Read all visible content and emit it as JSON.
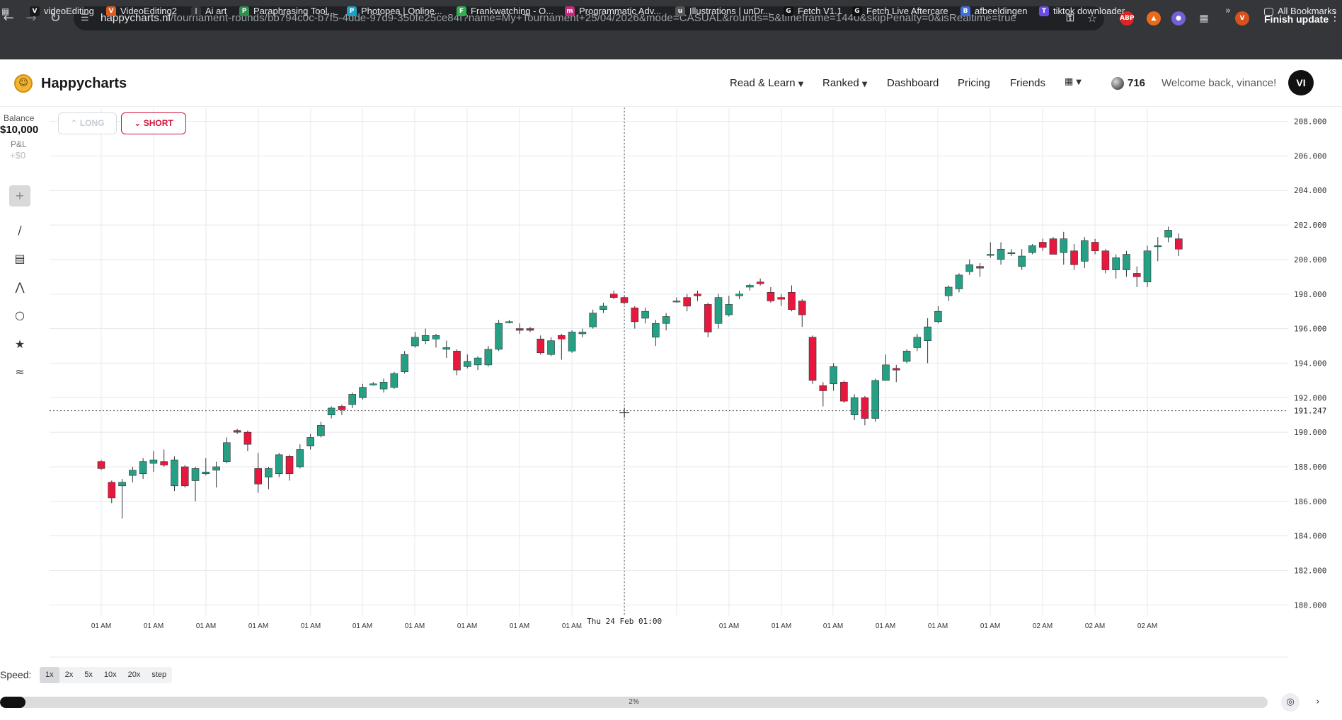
{
  "browser": {
    "url_host": "happycharts.nl",
    "url_path": "/tournament-rounds/bb794c0c-b7f5-4dde-97d9-350fe25ce84f?name=My+Tournament+25/04/2026&mode=CASUAL&rounds=5&timeframe=1440&skipPenalty=0&isRealtime=true",
    "finish_update": "Finish update",
    "bookmarks": [
      {
        "label": "videoEditing",
        "icon": "V",
        "color": "#1a1a1a"
      },
      {
        "label": "VideoEditing2",
        "icon": "V",
        "color": "#e05a1c"
      },
      {
        "label": "Ai art",
        "icon": "|",
        "color": "#35363a"
      },
      {
        "label": "Paraphrasing Tool...",
        "icon": "P",
        "color": "#2f8f4e"
      },
      {
        "label": "Photopea | Online...",
        "icon": "P",
        "color": "#1aa1c4"
      },
      {
        "label": "Frankwatching - O...",
        "icon": "F",
        "color": "#2bb24c"
      },
      {
        "label": "Programmatic Adv...",
        "icon": "m",
        "color": "#c62a7a"
      },
      {
        "label": "Illustrations | unDr...",
        "icon": "u",
        "color": "#555"
      },
      {
        "label": "Fetch V1.1",
        "icon": "G",
        "color": "#111"
      },
      {
        "label": "Fetch Live Aftercare",
        "icon": "G",
        "color": "#111"
      },
      {
        "label": "afbeeldingen",
        "icon": "B",
        "color": "#3a6fe0"
      },
      {
        "label": "tiktok downloader",
        "icon": "T",
        "color": "#6b4de6"
      }
    ],
    "all_bookmarks": "All Bookmarks"
  },
  "app": {
    "brand": "Happycharts",
    "nav": [
      {
        "label": "Read & Learn",
        "dropdown": true
      },
      {
        "label": "Ranked",
        "dropdown": true
      },
      {
        "label": "Dashboard",
        "dropdown": false
      },
      {
        "label": "Pricing",
        "dropdown": false
      },
      {
        "label": "Friends",
        "dropdown": false
      }
    ],
    "coins": "716",
    "welcome": "Welcome back, vinance!",
    "avatar_initials": "VI"
  },
  "account": {
    "balance_label": "Balance",
    "balance_value": "$10,000",
    "pnl_label": "P&L",
    "pnl_value": "+$0"
  },
  "trade": {
    "long_label": "LONG",
    "short_label": "SHORT"
  },
  "tools": [
    "crosshair-icon",
    "trend-line-icon",
    "ruler-icon",
    "path-icon",
    "circle-icon",
    "star-icon",
    "lines-icon"
  ],
  "speed": {
    "label": "Speed:",
    "options": [
      "1x",
      "2x",
      "5x",
      "10x",
      "20x",
      "step"
    ],
    "selected": 0
  },
  "progress": {
    "label": "2%",
    "fraction": 0.02
  },
  "colors": {
    "up": "#26a085",
    "down": "#e8173d",
    "short": "#d0143c"
  },
  "chart_data": {
    "type": "candlestick",
    "ylim": [
      179.4,
      208.8
    ],
    "y_ticks": [
      "208.000",
      "206.000",
      "204.000",
      "202.000",
      "200.000",
      "198.000",
      "196.000",
      "194.000",
      "192.000",
      "190.000",
      "188.000",
      "186.000",
      "184.000",
      "182.000",
      "180.000"
    ],
    "x_ticks": [
      "01 AM",
      "01 AM",
      "01 AM",
      "01 AM",
      "01 AM",
      "01 AM",
      "01 AM",
      "01 AM",
      "01 AM",
      "01 AM",
      "01 AM",
      "01 AM",
      "01 AM",
      "01 AM",
      "01 AM",
      "01 AM",
      "02 AM",
      "02 AM",
      "02 AM"
    ],
    "crosshair_time": "Thu 24 Feb 01:00",
    "crosshair_price": "191.247",
    "crosshair_price_value": 191.25,
    "crosshair_candle": 54,
    "candles": [
      {
        "o": 188.3,
        "h": 188.4,
        "l": 187.8,
        "c": 187.9
      },
      {
        "o": 187.1,
        "h": 187.2,
        "l": 185.9,
        "c": 186.2
      },
      {
        "o": 186.9,
        "h": 187.3,
        "l": 185.0,
        "c": 187.1
      },
      {
        "o": 187.5,
        "h": 188.0,
        "l": 187.1,
        "c": 187.8
      },
      {
        "o": 187.6,
        "h": 188.5,
        "l": 187.3,
        "c": 188.3
      },
      {
        "o": 188.2,
        "h": 188.9,
        "l": 187.7,
        "c": 188.4
      },
      {
        "o": 188.3,
        "h": 189.0,
        "l": 188.0,
        "c": 188.1
      },
      {
        "o": 186.9,
        "h": 188.6,
        "l": 186.6,
        "c": 188.4
      },
      {
        "o": 188.0,
        "h": 188.1,
        "l": 186.8,
        "c": 186.9
      },
      {
        "o": 187.2,
        "h": 188.0,
        "l": 186.0,
        "c": 187.9
      },
      {
        "o": 187.6,
        "h": 188.5,
        "l": 187.5,
        "c": 187.7
      },
      {
        "o": 187.8,
        "h": 188.3,
        "l": 186.8,
        "c": 188.0
      },
      {
        "o": 188.3,
        "h": 189.7,
        "l": 188.2,
        "c": 189.4
      },
      {
        "o": 190.1,
        "h": 190.2,
        "l": 189.9,
        "c": 190.0
      },
      {
        "o": 190.0,
        "h": 190.1,
        "l": 188.9,
        "c": 189.3
      },
      {
        "o": 187.9,
        "h": 188.8,
        "l": 186.5,
        "c": 187.0
      },
      {
        "o": 187.4,
        "h": 188.0,
        "l": 186.7,
        "c": 187.9
      },
      {
        "o": 187.6,
        "h": 188.8,
        "l": 187.4,
        "c": 188.7
      },
      {
        "o": 188.6,
        "h": 188.7,
        "l": 187.2,
        "c": 187.6
      },
      {
        "o": 188.0,
        "h": 189.3,
        "l": 187.9,
        "c": 189.0
      },
      {
        "o": 189.2,
        "h": 189.9,
        "l": 189.0,
        "c": 189.7
      },
      {
        "o": 189.8,
        "h": 190.6,
        "l": 189.7,
        "c": 190.4
      },
      {
        "o": 191.0,
        "h": 191.5,
        "l": 190.8,
        "c": 191.4
      },
      {
        "o": 191.5,
        "h": 191.6,
        "l": 191.0,
        "c": 191.3
      },
      {
        "o": 191.6,
        "h": 192.3,
        "l": 191.4,
        "c": 192.2
      },
      {
        "o": 192.0,
        "h": 192.8,
        "l": 191.9,
        "c": 192.6
      },
      {
        "o": 192.8,
        "h": 192.9,
        "l": 192.7,
        "c": 192.8
      },
      {
        "o": 192.5,
        "h": 193.1,
        "l": 192.3,
        "c": 192.9
      },
      {
        "o": 192.6,
        "h": 193.5,
        "l": 192.5,
        "c": 193.4
      },
      {
        "o": 193.5,
        "h": 194.7,
        "l": 193.4,
        "c": 194.5
      },
      {
        "o": 195.0,
        "h": 195.8,
        "l": 194.9,
        "c": 195.5
      },
      {
        "o": 195.3,
        "h": 196.0,
        "l": 195.1,
        "c": 195.6
      },
      {
        "o": 195.4,
        "h": 195.7,
        "l": 194.9,
        "c": 195.6
      },
      {
        "o": 194.8,
        "h": 195.3,
        "l": 194.3,
        "c": 194.9
      },
      {
        "o": 194.7,
        "h": 194.8,
        "l": 193.3,
        "c": 193.6
      },
      {
        "o": 193.8,
        "h": 194.5,
        "l": 193.7,
        "c": 194.1
      },
      {
        "o": 193.9,
        "h": 194.4,
        "l": 193.6,
        "c": 194.3
      },
      {
        "o": 193.9,
        "h": 195.0,
        "l": 193.8,
        "c": 194.8
      },
      {
        "o": 194.8,
        "h": 196.5,
        "l": 194.7,
        "c": 196.3
      },
      {
        "o": 196.4,
        "h": 196.5,
        "l": 196.3,
        "c": 196.4
      },
      {
        "o": 196.0,
        "h": 196.3,
        "l": 195.7,
        "c": 195.9
      },
      {
        "o": 196.0,
        "h": 196.1,
        "l": 195.8,
        "c": 195.9
      },
      {
        "o": 195.4,
        "h": 195.6,
        "l": 194.5,
        "c": 194.6
      },
      {
        "o": 194.5,
        "h": 195.5,
        "l": 194.4,
        "c": 195.3
      },
      {
        "o": 195.6,
        "h": 195.7,
        "l": 194.2,
        "c": 195.4
      },
      {
        "o": 194.7,
        "h": 195.9,
        "l": 194.6,
        "c": 195.8
      },
      {
        "o": 195.7,
        "h": 196.0,
        "l": 195.5,
        "c": 195.8
      },
      {
        "o": 196.1,
        "h": 197.1,
        "l": 196.0,
        "c": 196.9
      },
      {
        "o": 197.1,
        "h": 197.5,
        "l": 196.9,
        "c": 197.3
      },
      {
        "o": 198.0,
        "h": 198.2,
        "l": 197.7,
        "c": 197.8
      },
      {
        "o": 197.8,
        "h": 197.9,
        "l": 197.4,
        "c": 197.5
      },
      {
        "o": 197.2,
        "h": 197.3,
        "l": 196.0,
        "c": 196.4
      },
      {
        "o": 196.6,
        "h": 197.2,
        "l": 196.3,
        "c": 197.0
      },
      {
        "o": 195.5,
        "h": 196.5,
        "l": 195.0,
        "c": 196.3
      },
      {
        "o": 196.3,
        "h": 196.9,
        "l": 195.9,
        "c": 196.7
      },
      {
        "o": 197.6,
        "h": 197.8,
        "l": 197.5,
        "c": 197.6
      },
      {
        "o": 197.8,
        "h": 198.0,
        "l": 197.0,
        "c": 197.3
      },
      {
        "o": 198.0,
        "h": 198.2,
        "l": 197.6,
        "c": 197.9
      },
      {
        "o": 197.4,
        "h": 197.5,
        "l": 195.5,
        "c": 195.8
      },
      {
        "o": 196.3,
        "h": 198.0,
        "l": 196.0,
        "c": 197.8
      },
      {
        "o": 196.8,
        "h": 197.9,
        "l": 196.7,
        "c": 197.4
      },
      {
        "o": 197.9,
        "h": 198.2,
        "l": 197.7,
        "c": 198.0
      },
      {
        "o": 198.4,
        "h": 198.6,
        "l": 198.2,
        "c": 198.5
      },
      {
        "o": 198.7,
        "h": 198.9,
        "l": 198.5,
        "c": 198.6
      },
      {
        "o": 198.1,
        "h": 198.4,
        "l": 197.5,
        "c": 197.6
      },
      {
        "o": 197.8,
        "h": 198.0,
        "l": 197.3,
        "c": 197.7
      },
      {
        "o": 198.1,
        "h": 198.5,
        "l": 197.0,
        "c": 197.1
      },
      {
        "o": 197.6,
        "h": 197.7,
        "l": 196.1,
        "c": 196.8
      },
      {
        "o": 195.5,
        "h": 195.6,
        "l": 192.8,
        "c": 193.0
      },
      {
        "o": 192.7,
        "h": 192.9,
        "l": 191.5,
        "c": 192.4
      },
      {
        "o": 192.8,
        "h": 194.0,
        "l": 192.4,
        "c": 193.8
      },
      {
        "o": 192.9,
        "h": 193.0,
        "l": 191.7,
        "c": 191.8
      },
      {
        "o": 191.0,
        "h": 192.2,
        "l": 190.7,
        "c": 192.0
      },
      {
        "o": 192.0,
        "h": 192.1,
        "l": 190.4,
        "c": 190.8
      },
      {
        "o": 190.8,
        "h": 193.1,
        "l": 190.6,
        "c": 193.0
      },
      {
        "o": 193.0,
        "h": 194.5,
        "l": 193.0,
        "c": 193.9
      },
      {
        "o": 193.7,
        "h": 193.9,
        "l": 192.9,
        "c": 193.6
      },
      {
        "o": 194.1,
        "h": 194.8,
        "l": 194.0,
        "c": 194.7
      },
      {
        "o": 194.9,
        "h": 195.7,
        "l": 194.7,
        "c": 195.5
      },
      {
        "o": 195.3,
        "h": 196.6,
        "l": 194.0,
        "c": 196.1
      },
      {
        "o": 196.4,
        "h": 197.3,
        "l": 196.3,
        "c": 197.0
      },
      {
        "o": 197.9,
        "h": 198.5,
        "l": 197.6,
        "c": 198.4
      },
      {
        "o": 198.3,
        "h": 199.2,
        "l": 198.1,
        "c": 199.1
      },
      {
        "o": 199.3,
        "h": 200.0,
        "l": 199.1,
        "c": 199.7
      },
      {
        "o": 199.6,
        "h": 199.8,
        "l": 199.0,
        "c": 199.5
      },
      {
        "o": 200.3,
        "h": 201.0,
        "l": 200.1,
        "c": 200.3
      },
      {
        "o": 200.0,
        "h": 201.0,
        "l": 199.7,
        "c": 200.6
      },
      {
        "o": 200.4,
        "h": 200.6,
        "l": 200.2,
        "c": 200.4
      },
      {
        "o": 199.6,
        "h": 200.6,
        "l": 199.4,
        "c": 200.2
      },
      {
        "o": 200.4,
        "h": 200.9,
        "l": 200.3,
        "c": 200.8
      },
      {
        "o": 201.0,
        "h": 201.2,
        "l": 200.5,
        "c": 200.7
      },
      {
        "o": 201.2,
        "h": 201.3,
        "l": 200.3,
        "c": 200.3
      },
      {
        "o": 200.4,
        "h": 201.6,
        "l": 199.7,
        "c": 201.2
      },
      {
        "o": 200.5,
        "h": 200.9,
        "l": 199.4,
        "c": 199.7
      },
      {
        "o": 199.9,
        "h": 201.3,
        "l": 199.5,
        "c": 201.1
      },
      {
        "o": 201.0,
        "h": 201.2,
        "l": 200.3,
        "c": 200.5
      },
      {
        "o": 200.5,
        "h": 200.6,
        "l": 199.2,
        "c": 199.4
      },
      {
        "o": 199.4,
        "h": 200.3,
        "l": 198.9,
        "c": 200.1
      },
      {
        "o": 199.4,
        "h": 200.5,
        "l": 199.0,
        "c": 200.3
      },
      {
        "o": 199.2,
        "h": 199.6,
        "l": 198.4,
        "c": 199.0
      },
      {
        "o": 198.7,
        "h": 200.8,
        "l": 198.4,
        "c": 200.5
      },
      {
        "o": 200.8,
        "h": 201.3,
        "l": 199.9,
        "c": 200.8
      },
      {
        "o": 201.3,
        "h": 201.9,
        "l": 201.0,
        "c": 201.7
      },
      {
        "o": 201.2,
        "h": 201.5,
        "l": 200.2,
        "c": 200.6
      }
    ]
  }
}
